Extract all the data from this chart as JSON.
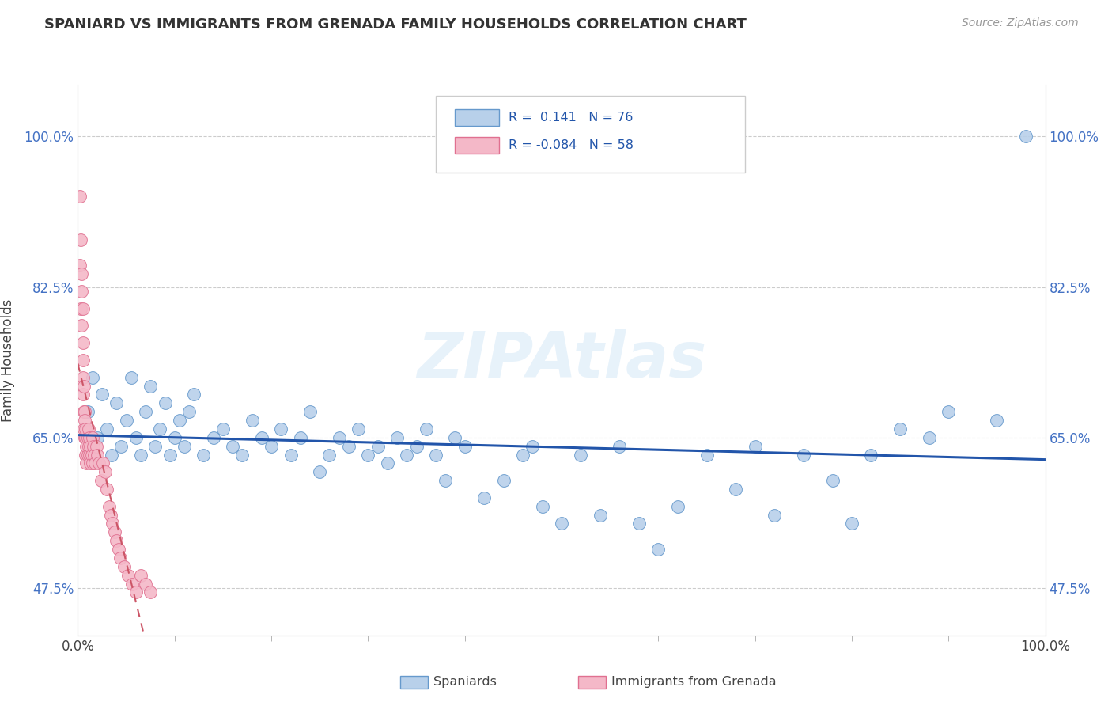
{
  "title": "SPANIARD VS IMMIGRANTS FROM GRENADA FAMILY HOUSEHOLDS CORRELATION CHART",
  "source": "Source: ZipAtlas.com",
  "ylabel": "Family Households",
  "xlim": [
    0.0,
    1.0
  ],
  "ylim": [
    0.42,
    1.06
  ],
  "yticks": [
    0.475,
    0.65,
    0.825,
    1.0
  ],
  "ytick_labels": [
    "47.5%",
    "65.0%",
    "82.5%",
    "100.0%"
  ],
  "blue_color": "#b8d0ea",
  "pink_color": "#f4b8c8",
  "blue_edge_color": "#6699cc",
  "pink_edge_color": "#e07090",
  "blue_line_color": "#2255aa",
  "pink_line_color": "#cc5566",
  "watermark": "ZIPAtlas",
  "blue_scatter_x": [
    0.01,
    0.015,
    0.02,
    0.025,
    0.03,
    0.035,
    0.04,
    0.045,
    0.05,
    0.055,
    0.06,
    0.065,
    0.07,
    0.075,
    0.08,
    0.085,
    0.09,
    0.095,
    0.1,
    0.105,
    0.11,
    0.115,
    0.12,
    0.13,
    0.14,
    0.15,
    0.16,
    0.17,
    0.18,
    0.19,
    0.2,
    0.21,
    0.22,
    0.23,
    0.24,
    0.25,
    0.26,
    0.27,
    0.28,
    0.29,
    0.3,
    0.31,
    0.32,
    0.33,
    0.34,
    0.35,
    0.36,
    0.37,
    0.38,
    0.39,
    0.4,
    0.42,
    0.44,
    0.46,
    0.47,
    0.48,
    0.5,
    0.52,
    0.54,
    0.56,
    0.58,
    0.6,
    0.62,
    0.65,
    0.68,
    0.7,
    0.72,
    0.75,
    0.78,
    0.8,
    0.82,
    0.85,
    0.88,
    0.9,
    0.95,
    0.98
  ],
  "blue_scatter_y": [
    0.68,
    0.72,
    0.65,
    0.7,
    0.66,
    0.63,
    0.69,
    0.64,
    0.67,
    0.72,
    0.65,
    0.63,
    0.68,
    0.71,
    0.64,
    0.66,
    0.69,
    0.63,
    0.65,
    0.67,
    0.64,
    0.68,
    0.7,
    0.63,
    0.65,
    0.66,
    0.64,
    0.63,
    0.67,
    0.65,
    0.64,
    0.66,
    0.63,
    0.65,
    0.68,
    0.61,
    0.63,
    0.65,
    0.64,
    0.66,
    0.63,
    0.64,
    0.62,
    0.65,
    0.63,
    0.64,
    0.66,
    0.63,
    0.6,
    0.65,
    0.64,
    0.58,
    0.6,
    0.63,
    0.64,
    0.57,
    0.55,
    0.63,
    0.56,
    0.64,
    0.55,
    0.52,
    0.57,
    0.63,
    0.59,
    0.64,
    0.56,
    0.63,
    0.6,
    0.55,
    0.63,
    0.66,
    0.65,
    0.68,
    0.67,
    1.0
  ],
  "pink_scatter_x": [
    0.002,
    0.002,
    0.003,
    0.003,
    0.004,
    0.004,
    0.004,
    0.005,
    0.005,
    0.005,
    0.005,
    0.005,
    0.006,
    0.006,
    0.006,
    0.007,
    0.007,
    0.007,
    0.008,
    0.008,
    0.008,
    0.009,
    0.009,
    0.01,
    0.01,
    0.011,
    0.011,
    0.012,
    0.012,
    0.013,
    0.013,
    0.014,
    0.015,
    0.015,
    0.016,
    0.017,
    0.018,
    0.019,
    0.02,
    0.022,
    0.024,
    0.026,
    0.028,
    0.03,
    0.032,
    0.034,
    0.036,
    0.038,
    0.04,
    0.042,
    0.044,
    0.048,
    0.052,
    0.056,
    0.06,
    0.065,
    0.07,
    0.075
  ],
  "pink_scatter_y": [
    0.93,
    0.85,
    0.88,
    0.8,
    0.84,
    0.82,
    0.78,
    0.76,
    0.8,
    0.74,
    0.72,
    0.7,
    0.68,
    0.71,
    0.66,
    0.68,
    0.65,
    0.67,
    0.65,
    0.63,
    0.66,
    0.64,
    0.62,
    0.65,
    0.63,
    0.66,
    0.64,
    0.63,
    0.65,
    0.62,
    0.64,
    0.63,
    0.62,
    0.65,
    0.64,
    0.63,
    0.62,
    0.64,
    0.63,
    0.62,
    0.6,
    0.62,
    0.61,
    0.59,
    0.57,
    0.56,
    0.55,
    0.54,
    0.53,
    0.52,
    0.51,
    0.5,
    0.49,
    0.48,
    0.47,
    0.49,
    0.48,
    0.47
  ]
}
